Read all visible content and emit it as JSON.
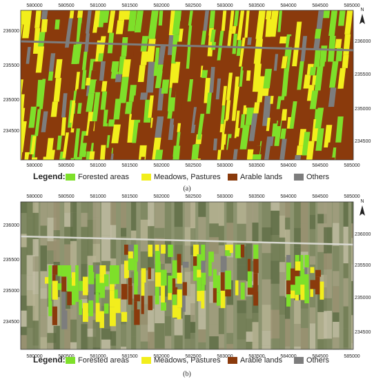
{
  "panels": [
    {
      "x_labels": [
        "580000",
        "580500",
        "581000",
        "581500",
        "582000",
        "582500",
        "583000",
        "583500",
        "584000",
        "584500",
        "585000"
      ],
      "y_labels_left": [
        "236000",
        "235500",
        "235000",
        "234500"
      ],
      "y_labels_right": [
        "236000",
        "235500",
        "235000",
        "234500"
      ],
      "north": "N",
      "legend": {
        "title": "Legend:",
        "items": [
          {
            "label": "Forested areas",
            "color": "#7ee02a"
          },
          {
            "label": "Meadows, Pastures",
            "color": "#f2ee1c"
          },
          {
            "label": "Arable lands",
            "color": "#8a3a0c"
          },
          {
            "label": "Others",
            "color": "#7d7d7d"
          }
        ]
      },
      "caption": "(a)"
    },
    {
      "x_labels": [
        "580000",
        "580500",
        "581000",
        "581500",
        "582000",
        "582500",
        "583000",
        "583500",
        "584000",
        "584500",
        "585000"
      ],
      "y_labels_left": [
        "236000",
        "235500",
        "235000",
        "234500"
      ],
      "y_labels_right": [
        "236000",
        "235500",
        "235000",
        "234500"
      ],
      "north": "N",
      "legend": {
        "title": "Legend:",
        "items": [
          {
            "label": "Forested areas",
            "color": "#7ee02a"
          },
          {
            "label": "Meadows, Pastures",
            "color": "#f2ee1c"
          },
          {
            "label": "Arable lands",
            "color": "#8a3a0c"
          },
          {
            "label": "Others",
            "color": "#7d7d7d"
          }
        ]
      },
      "caption": "(b)"
    }
  ]
}
